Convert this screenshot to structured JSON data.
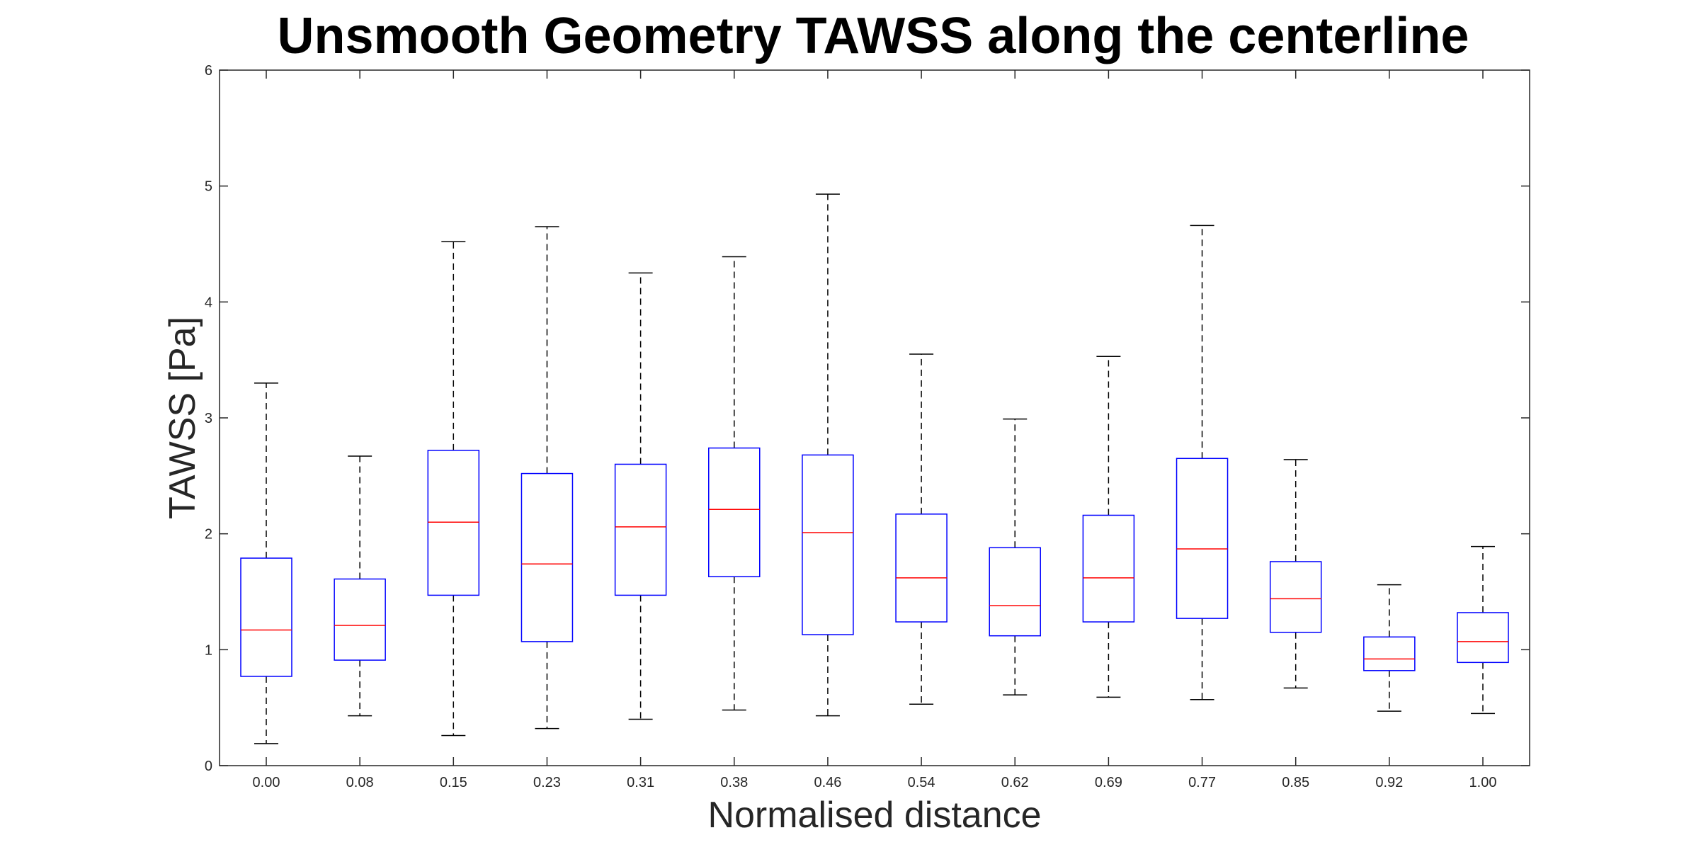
{
  "chart_data": {
    "type": "box",
    "title": "Unsmooth Geometry TAWSS along the centerline",
    "xlabel": "Normalised distance",
    "ylabel": "TAWSS [Pa]",
    "ylim": [
      0,
      6
    ],
    "yticks": [
      "0",
      "1",
      "2",
      "3",
      "4",
      "5",
      "6"
    ],
    "categories": [
      "0.00",
      "0.08",
      "0.15",
      "0.23",
      "0.31",
      "0.38",
      "0.46",
      "0.54",
      "0.62",
      "0.69",
      "0.77",
      "0.85",
      "0.92",
      "1.00"
    ],
    "boxes": [
      {
        "whisker_low": 0.19,
        "q1": 0.77,
        "median": 1.17,
        "q3": 1.79,
        "whisker_high": 3.3
      },
      {
        "whisker_low": 0.43,
        "q1": 0.91,
        "median": 1.21,
        "q3": 1.61,
        "whisker_high": 2.67
      },
      {
        "whisker_low": 0.26,
        "q1": 1.47,
        "median": 2.1,
        "q3": 2.72,
        "whisker_high": 4.52
      },
      {
        "whisker_low": 0.32,
        "q1": 1.07,
        "median": 1.74,
        "q3": 2.52,
        "whisker_high": 4.65
      },
      {
        "whisker_low": 0.4,
        "q1": 1.47,
        "median": 2.06,
        "q3": 2.6,
        "whisker_high": 4.25
      },
      {
        "whisker_low": 0.48,
        "q1": 1.63,
        "median": 2.21,
        "q3": 2.74,
        "whisker_high": 4.39
      },
      {
        "whisker_low": 0.43,
        "q1": 1.13,
        "median": 2.01,
        "q3": 2.68,
        "whisker_high": 4.93
      },
      {
        "whisker_low": 0.53,
        "q1": 1.24,
        "median": 1.62,
        "q3": 2.17,
        "whisker_high": 3.55
      },
      {
        "whisker_low": 0.61,
        "q1": 1.12,
        "median": 1.38,
        "q3": 1.88,
        "whisker_high": 2.99
      },
      {
        "whisker_low": 0.59,
        "q1": 1.24,
        "median": 1.62,
        "q3": 2.16,
        "whisker_high": 3.53
      },
      {
        "whisker_low": 0.57,
        "q1": 1.27,
        "median": 1.87,
        "q3": 2.65,
        "whisker_high": 4.66
      },
      {
        "whisker_low": 0.67,
        "q1": 1.15,
        "median": 1.44,
        "q3": 1.76,
        "whisker_high": 2.64
      },
      {
        "whisker_low": 0.47,
        "q1": 0.82,
        "median": 0.92,
        "q3": 1.11,
        "whisker_high": 1.56
      },
      {
        "whisker_low": 0.45,
        "q1": 0.89,
        "median": 1.07,
        "q3": 1.32,
        "whisker_high": 1.89
      }
    ],
    "grid": false,
    "colors": {
      "box": "#0000ff",
      "median": "#ff0000",
      "whisker": "#000000",
      "axis": "#262626"
    }
  }
}
